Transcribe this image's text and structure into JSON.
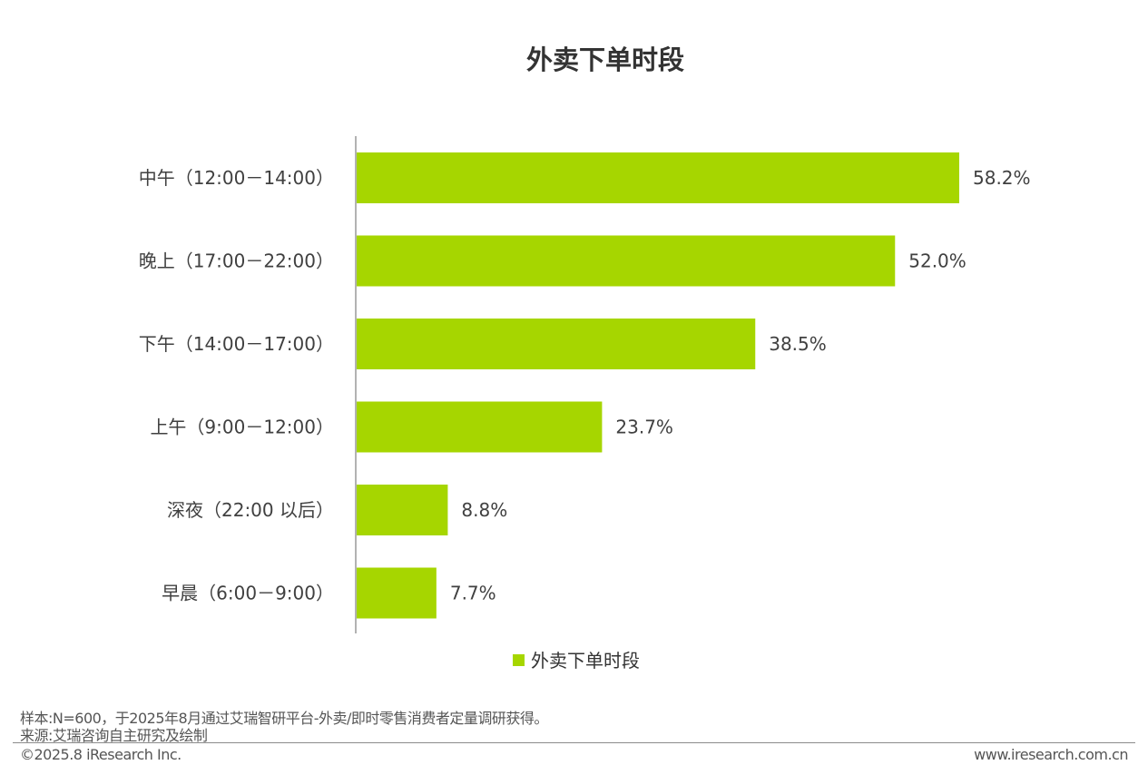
{
  "chart_data": {
    "type": "bar",
    "orientation": "horizontal",
    "title": "外卖下单时段",
    "categories": [
      "中午（12:00－14:00）",
      "晚上（17:00－22:00）",
      "下午（14:00－17:00）",
      "上午（9:00－12:00）",
      "深夜（22:00 以后）",
      "早晨（6:00－9:00）"
    ],
    "series": [
      {
        "name": "外卖下单时段",
        "values": [
          58.2,
          52.0,
          38.5,
          23.7,
          8.8,
          7.7
        ],
        "value_labels": [
          "58.2%",
          "52.0%",
          "38.5%",
          "23.7%",
          "8.8%",
          "7.7%"
        ],
        "color": "#a6d600"
      }
    ],
    "xlim": [
      0,
      58.2
    ],
    "grid": false,
    "legend_position": "bottom-center"
  },
  "footer": {
    "sample_note": "样本:N=600，于2025年8月通过艾瑞智研平台-外卖/即时零售消费者定量调研获得。",
    "source_note": "来源:艾瑞咨询自主研究及绘制",
    "copyright": "©2025.8 iResearch Inc.",
    "website": "www.iresearch.com.cn"
  },
  "colors": {
    "bar": "#a6d600",
    "axis": "#999999",
    "title": "#333333",
    "category_text": "#404040",
    "value_text": "#404040"
  }
}
